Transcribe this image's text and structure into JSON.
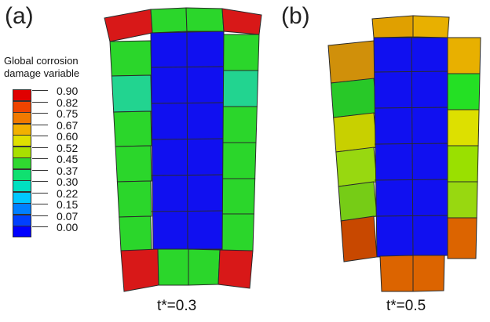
{
  "panels": [
    {
      "label": "(a)",
      "caption": "t*=0.3"
    },
    {
      "label": "(b)",
      "caption": "t*=0.5"
    }
  ],
  "legend": {
    "title_line1": "Global corrosion",
    "title_line2": "damage variable",
    "levels": [
      {
        "value": "0.90",
        "color": "#e00000"
      },
      {
        "value": "0.82",
        "color": "#ee4400"
      },
      {
        "value": "0.75",
        "color": "#f07a00"
      },
      {
        "value": "0.67",
        "color": "#f2b100"
      },
      {
        "value": "0.60",
        "color": "#e0e000"
      },
      {
        "value": "0.52",
        "color": "#a8e000"
      },
      {
        "value": "0.45",
        "color": "#30d830"
      },
      {
        "value": "0.37",
        "color": "#10e070"
      },
      {
        "value": "0.30",
        "color": "#00e0c0"
      },
      {
        "value": "0.22",
        "color": "#00c8ff"
      },
      {
        "value": "0.15",
        "color": "#0080ff"
      },
      {
        "value": "0.07",
        "color": "#0040ff"
      },
      {
        "value": "0.00",
        "color": "#0000ff"
      }
    ]
  },
  "colors": {
    "red": "#d81818",
    "green": "#2bd62b",
    "teal": "#22d490",
    "blue": "#1010f0",
    "orange_gold": "#e0a000",
    "gold": "#e8b000",
    "amber": "#d0900a",
    "green_a": "#28c828",
    "yellow_green": "#c8d000",
    "lime": "#98d810",
    "green_b": "#76cc16",
    "orange": "#dc6400",
    "rust": "#c84800",
    "bright_green": "#24e024",
    "yellow": "#dde000",
    "lime2": "#9ae000"
  }
}
